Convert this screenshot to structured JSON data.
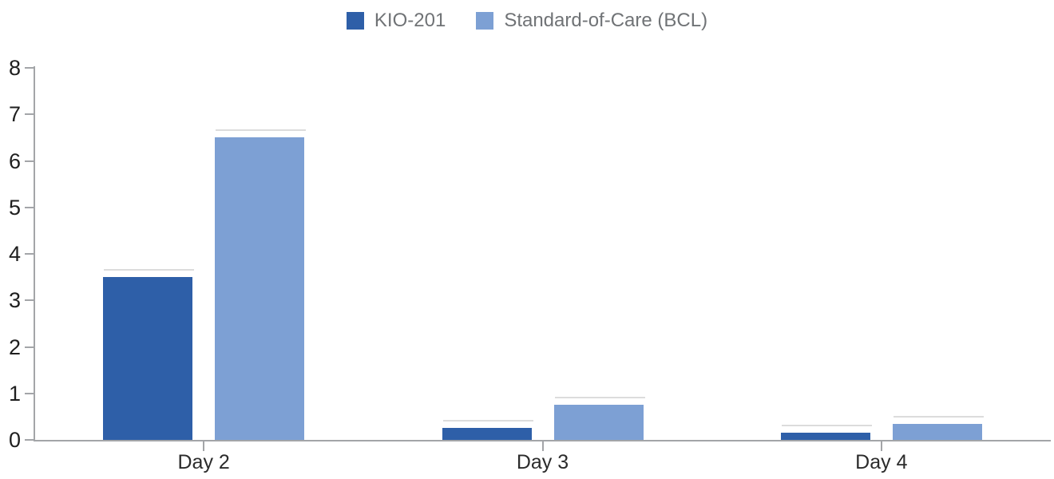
{
  "chart_data": {
    "type": "bar",
    "title": "",
    "xlabel": "",
    "ylabel": "",
    "categories": [
      "Day 2",
      "Day 3",
      "Day 4"
    ],
    "series": [
      {
        "name": "KIO-201",
        "color": "#2E5FA8",
        "values": [
          3.5,
          0.25,
          0.15
        ]
      },
      {
        "name": "Standard-of-Care (BCL)",
        "color": "#7DA0D4",
        "values": [
          6.5,
          0.75,
          0.35
        ]
      }
    ],
    "ylim": [
      0,
      8
    ],
    "yticks": [
      0,
      1,
      2,
      3,
      4,
      5,
      6,
      7,
      8
    ],
    "grid": false,
    "legend_position": "top-center",
    "colors": {
      "axis": "#a3a5a8",
      "y_tick_label": "#1f1f1f",
      "x_tick_label": "#2b2b2b",
      "legend_text": "#707376",
      "background": "#ffffff"
    }
  }
}
